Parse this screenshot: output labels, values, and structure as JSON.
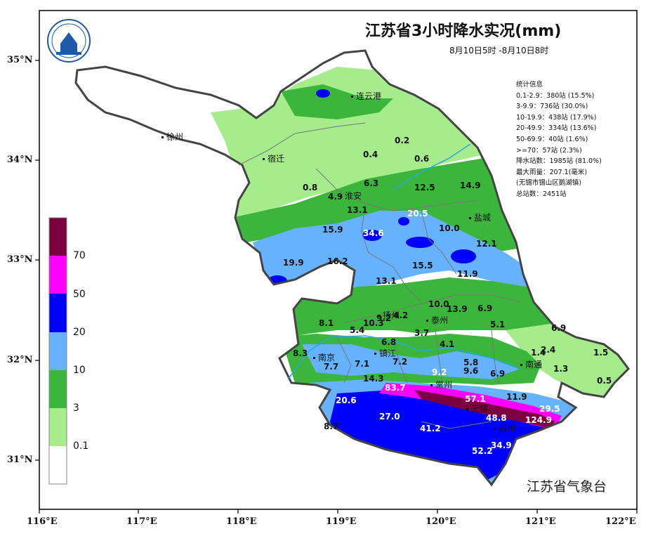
{
  "title": "江苏省3小时降水实况(mm)",
  "subtitle": "8月10日5时 -8月10日8时",
  "agency": "江苏省气象台",
  "logo_text": "江苏省气象台",
  "stats": {
    "header": "统计信息",
    "lines": [
      "0.1-2.9：380站 (15.5%)",
      "3-9.9：736站 (30.0%)",
      "10-19.9：438站 (17.9%)",
      "20-49.9：334站 (13.6%)",
      "50-69.9：40站 (1.6%)",
      ">=70：57站 (2.3%)",
      "降水站数：1985站 (81.0%)",
      "最大雨量：207.1(毫米)",
      "(无锡市锡山区鹅湖镇)",
      "总站数：2451站"
    ]
  },
  "legend": {
    "labels": [
      "70",
      "50",
      "20",
      "10",
      "3",
      "0.1"
    ],
    "colors": [
      "#7a0040",
      "#ff00ff",
      "#0000ff",
      "#66b2ff",
      "#3cb53c",
      "#a6ec8c",
      "#ffffff"
    ]
  },
  "axes": {
    "lat_labels": [
      "35°N",
      "34°N",
      "33°N",
      "32°N",
      "31°N"
    ],
    "lon_labels": [
      "116°E",
      "117°E",
      "118°E",
      "119°E",
      "120°E",
      "121°E",
      "122°E"
    ]
  },
  "cities": [
    "连云港",
    "徐州",
    "宿迁",
    "淮安",
    "盐城",
    "扬州",
    "泰州",
    "南京",
    "镇江",
    "南通",
    "常州",
    "无锡",
    "苏州"
  ],
  "values": [
    "0.2",
    "0.4",
    "0.6",
    "0.8",
    "4.9",
    "6.3",
    "12.5",
    "14.9",
    "13.1",
    "20.5",
    "15.9",
    "34.6",
    "10.0",
    "12.1",
    "19.9",
    "16.2",
    "15.5",
    "11.9",
    "13.1",
    "10.0",
    "13.9",
    "6.9",
    "8.1",
    "5.4",
    "10.3",
    "9.2",
    "4.2",
    "5.1",
    "6.9",
    "3.7",
    "6.8",
    "4.1",
    "1.4",
    "2.4",
    "1.5",
    "8.3",
    "7.7",
    "7.1",
    "7.2",
    "5.8",
    "9.6",
    "6.9",
    "1.3",
    "0.5",
    "14.3",
    "83.7",
    "9.2",
    "20.6",
    "57.1",
    "11.9",
    "29.5",
    "27.0",
    "48.8",
    "124.9",
    "41.2",
    "8.7",
    "52.2",
    "34.9"
  ]
}
